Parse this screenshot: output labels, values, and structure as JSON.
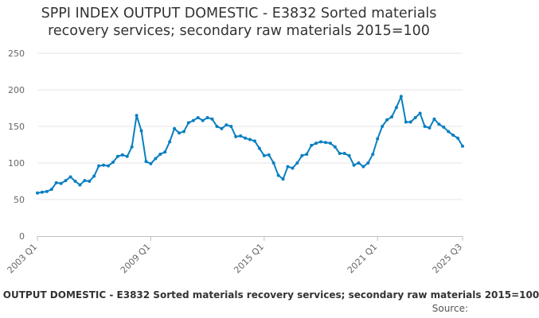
{
  "chart_data": {
    "type": "line",
    "title_lines": [
      "SPPI INDEX OUTPUT DOMESTIC - E3832 Sorted materials",
      "recovery services; secondary raw materials 2015=100"
    ],
    "xlabel": "",
    "ylabel": "",
    "ylim": [
      0,
      250
    ],
    "yticks": [
      0,
      50,
      100,
      150,
      200,
      250
    ],
    "x_start": "2003 Q1",
    "x_end": "2025 Q3",
    "xticks": [
      "2003 Q1",
      "2009 Q1",
      "2015 Q1",
      "2021 Q1",
      "2025 Q3"
    ],
    "grid": true,
    "legend": "bottom",
    "series": [
      {
        "name": "SPPI INDEX OUTPUT DOMESTIC - E3832 Sorted materials recovery services; secondary raw materials 2015=100",
        "color": "#0a7fc1",
        "values": [
          59,
          60,
          61,
          64,
          73,
          72,
          76,
          81,
          75,
          70,
          76,
          75,
          82,
          96,
          97,
          96,
          101,
          109,
          111,
          109,
          122,
          165,
          144,
          102,
          99,
          106,
          112,
          115,
          129,
          147,
          141,
          143,
          155,
          158,
          162,
          158,
          162,
          160,
          150,
          147,
          152,
          150,
          136,
          137,
          134,
          132,
          130,
          120,
          110,
          111,
          100,
          83,
          78,
          95,
          93,
          100,
          110,
          112,
          124,
          127,
          129,
          128,
          127,
          122,
          113,
          113,
          110,
          97,
          100,
          95,
          100,
          112,
          133,
          150,
          159,
          163,
          176,
          191,
          156,
          156,
          162,
          168,
          150,
          148,
          160,
          153,
          149,
          143,
          138,
          134,
          123
        ]
      }
    ]
  },
  "source_label": "Source:"
}
